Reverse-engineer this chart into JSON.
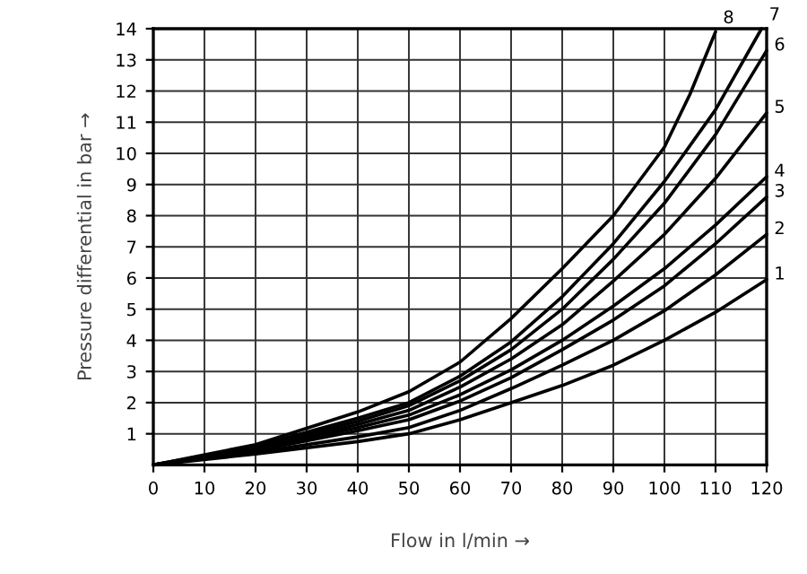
{
  "chart_data": {
    "type": "line",
    "xlabel": "Flow in l/min →",
    "ylabel": "Pressure differential in bar →",
    "xlim": [
      0,
      120
    ],
    "ylim": [
      0,
      14
    ],
    "xticks": [
      0,
      10,
      20,
      30,
      40,
      50,
      60,
      70,
      80,
      90,
      100,
      110,
      120
    ],
    "yticks": [
      1,
      2,
      3,
      4,
      5,
      6,
      7,
      8,
      9,
      10,
      11,
      12,
      13,
      14
    ],
    "grid": true,
    "marker": "none",
    "line_style": "solid",
    "series": [
      {
        "name": "1",
        "color": "#000000",
        "x": [
          0,
          20,
          40,
          50,
          60,
          70,
          80,
          90,
          100,
          110,
          120
        ],
        "values": [
          0,
          0.35,
          0.75,
          1.0,
          1.45,
          2.0,
          2.55,
          3.2,
          4.0,
          4.9,
          5.95
        ]
      },
      {
        "name": "2",
        "color": "#000000",
        "x": [
          0,
          20,
          40,
          50,
          60,
          70,
          80,
          90,
          100,
          110,
          120
        ],
        "values": [
          0,
          0.4,
          0.9,
          1.2,
          1.75,
          2.45,
          3.2,
          4.0,
          4.95,
          6.1,
          7.4
        ]
      },
      {
        "name": "3",
        "color": "#000000",
        "x": [
          0,
          20,
          40,
          50,
          60,
          70,
          80,
          90,
          100,
          110,
          120
        ],
        "values": [
          0,
          0.45,
          1.1,
          1.45,
          2.05,
          2.8,
          3.7,
          4.65,
          5.75,
          7.1,
          8.6
        ]
      },
      {
        "name": "4",
        "color": "#000000",
        "x": [
          0,
          20,
          40,
          50,
          60,
          70,
          80,
          90,
          100,
          110,
          120
        ],
        "values": [
          0,
          0.5,
          1.2,
          1.6,
          2.25,
          3.05,
          4.0,
          5.1,
          6.3,
          7.7,
          9.25
        ]
      },
      {
        "name": "5",
        "color": "#000000",
        "x": [
          0,
          20,
          40,
          50,
          60,
          70,
          80,
          90,
          100,
          110,
          120
        ],
        "values": [
          0,
          0.5,
          1.3,
          1.75,
          2.5,
          3.4,
          4.5,
          5.9,
          7.4,
          9.2,
          11.3
        ]
      },
      {
        "name": "6",
        "color": "#000000",
        "x": [
          0,
          20,
          40,
          50,
          60,
          70,
          80,
          90,
          100,
          110,
          120
        ],
        "values": [
          0,
          0.55,
          1.4,
          1.9,
          2.7,
          3.7,
          5.0,
          6.6,
          8.4,
          10.6,
          13.3
        ]
      },
      {
        "name": "7",
        "color": "#000000",
        "x": [
          0,
          20,
          40,
          50,
          60,
          70,
          80,
          90,
          100,
          110,
          119
        ],
        "values": [
          0,
          0.6,
          1.5,
          2.0,
          2.85,
          3.95,
          5.4,
          7.1,
          9.1,
          11.4,
          14.0
        ]
      },
      {
        "name": "8",
        "color": "#000000",
        "x": [
          0,
          20,
          40,
          50,
          60,
          70,
          80,
          90,
          100,
          105,
          110
        ],
        "values": [
          0,
          0.65,
          1.7,
          2.35,
          3.3,
          4.7,
          6.3,
          8.0,
          10.2,
          11.9,
          13.9
        ]
      }
    ]
  }
}
